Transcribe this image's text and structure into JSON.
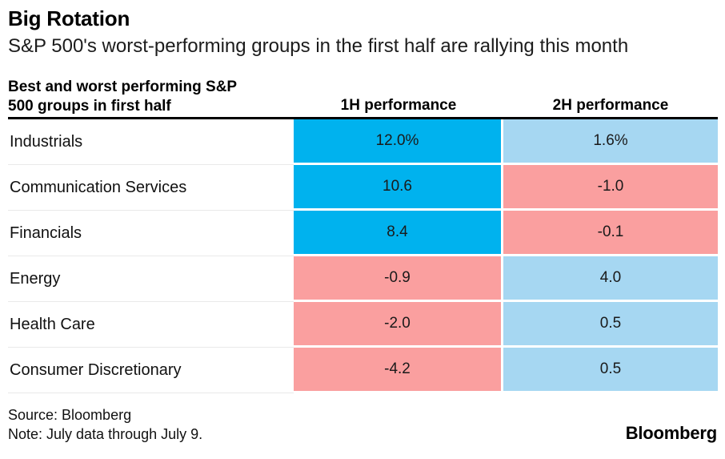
{
  "page": {
    "title": "Big Rotation",
    "subtitle": "S&P 500's worst-performing groups in the first half are rallying this month"
  },
  "table_header": {
    "col1_line1": "Best and worst performing S&P",
    "col1_line2": "500 groups in first half",
    "col2": "1H performance",
    "col3": "2H performance"
  },
  "chart_data": {
    "type": "table",
    "title": "Big Rotation",
    "subtitle": "S&P 500's worst-performing groups in the first half are rallying this month",
    "columns": [
      "Best and worst performing S&P 500 groups in first half",
      "1H performance",
      "2H performance"
    ],
    "units": "percent",
    "legend": "none",
    "color_coding": {
      "strong_gain": "#00b2ee",
      "mild_gain": "#a6d7f2",
      "loss": "#fa9f9f"
    },
    "rows": [
      {
        "label": "Industrials",
        "h1_label": "12.0%",
        "h1_value": 12.0,
        "h1_color": "#00b2ee",
        "h2_label": "1.6%",
        "h2_value": 1.6,
        "h2_color": "#a6d7f2"
      },
      {
        "label": "Communication Services",
        "h1_label": "10.6",
        "h1_value": 10.6,
        "h1_color": "#00b2ee",
        "h2_label": "-1.0",
        "h2_value": -1.0,
        "h2_color": "#fa9f9f"
      },
      {
        "label": "Financials",
        "h1_label": "8.4",
        "h1_value": 8.4,
        "h1_color": "#00b2ee",
        "h2_label": "-0.1",
        "h2_value": -0.1,
        "h2_color": "#fa9f9f"
      },
      {
        "label": "Energy",
        "h1_label": "-0.9",
        "h1_value": -0.9,
        "h1_color": "#fa9f9f",
        "h2_label": "4.0",
        "h2_value": 4.0,
        "h2_color": "#a6d7f2"
      },
      {
        "label": "Health Care",
        "h1_label": "-2.0",
        "h1_value": -2.0,
        "h1_color": "#fa9f9f",
        "h2_label": "0.5",
        "h2_value": 0.5,
        "h2_color": "#a6d7f2"
      },
      {
        "label": "Consumer Discretionary",
        "h1_label": "-4.2",
        "h1_value": -4.2,
        "h1_color": "#fa9f9f",
        "h2_label": "0.5",
        "h2_value": 0.5,
        "h2_color": "#a6d7f2"
      }
    ]
  },
  "footer": {
    "source": "Source: Bloomberg",
    "note": "Note: July data through July 9.",
    "brand": "Bloomberg"
  }
}
